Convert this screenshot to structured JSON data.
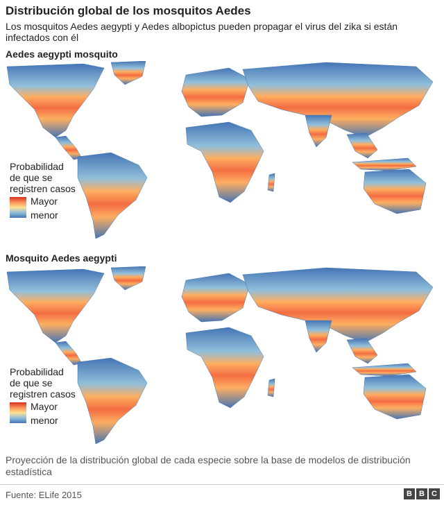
{
  "title": "Distribución global de los mosquitos Aedes",
  "subtitle": "Los mosquitos Aedes aegypti y Aedes albopictus pueden propagar el virus del zika si están infectados con él",
  "maps": [
    {
      "heading": "Aedes aegypti mosquito",
      "legend": {
        "title": "Probabilidad\nde que se\nregistren casos",
        "high": "Mayor",
        "low": "menor"
      }
    },
    {
      "heading": "Mosquito Aedes aegypti",
      "legend": {
        "title": "Probabilidad\nde que se\nregistren casos",
        "high": "Mayor",
        "low": "menor"
      }
    }
  ],
  "caption": "Proyección de la distribución global de cada especie sobre la base de modelos de distribución estadística",
  "source": "Fuente: ELife 2015",
  "logo": [
    "B",
    "B",
    "C"
  ],
  "colors": {
    "low": "#4575b4",
    "mid": "#fee090",
    "high": "#d7301f"
  }
}
